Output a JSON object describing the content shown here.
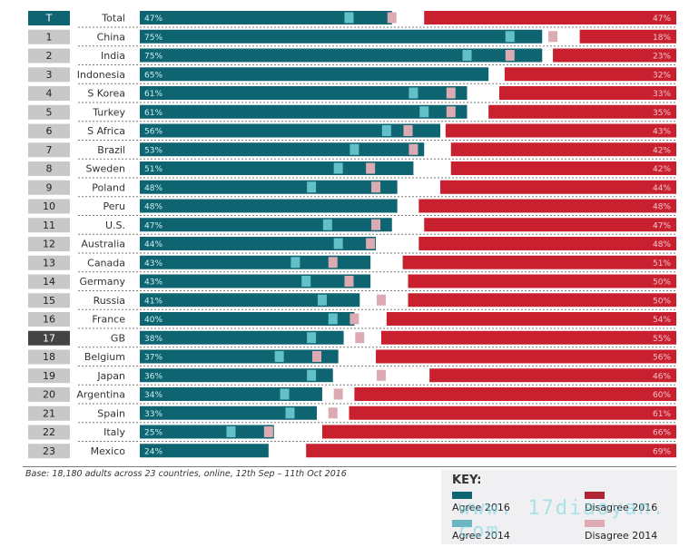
{
  "chart_data": {
    "type": "bar",
    "orientation": "horizontal-diverging",
    "title": "",
    "xlim": [
      0,
      100
    ],
    "colors": {
      "agree_2016": "#0e6470",
      "agree_2014": "#62c0c9",
      "disagree_2016": "#c8202f",
      "disagree_2014": "#dcaab2",
      "badge_total": "#0e6470",
      "badge_default": "#c8c8c8",
      "badge_highlight": "#444444"
    },
    "rows": [
      {
        "rank": "T",
        "country": "Total",
        "agree_2016": 47,
        "disagree_2016": 47,
        "agree_2014": 39,
        "disagree_2014": 53,
        "badge": "total"
      },
      {
        "rank": "1",
        "country": "China",
        "agree_2016": 75,
        "disagree_2016": 18,
        "agree_2014": 69,
        "disagree_2014": 23,
        "badge": "default"
      },
      {
        "rank": "2",
        "country": "India",
        "agree_2016": 75,
        "disagree_2016": 23,
        "agree_2014": 61,
        "disagree_2014": 31,
        "badge": "default"
      },
      {
        "rank": "3",
        "country": "Indonesia",
        "agree_2016": 65,
        "disagree_2016": 32,
        "agree_2014": null,
        "disagree_2014": null,
        "badge": "default"
      },
      {
        "rank": "4",
        "country": "S Korea",
        "agree_2016": 61,
        "disagree_2016": 33,
        "agree_2014": 51,
        "disagree_2014": 42,
        "badge": "default"
      },
      {
        "rank": "5",
        "country": "Turkey",
        "agree_2016": 61,
        "disagree_2016": 35,
        "agree_2014": 53,
        "disagree_2014": 42,
        "badge": "default"
      },
      {
        "rank": "6",
        "country": "S Africa",
        "agree_2016": 56,
        "disagree_2016": 43,
        "agree_2014": 46,
        "disagree_2014": 50,
        "badge": "default"
      },
      {
        "rank": "7",
        "country": "Brazil",
        "agree_2016": 53,
        "disagree_2016": 42,
        "agree_2014": 40,
        "disagree_2014": 49,
        "badge": "default"
      },
      {
        "rank": "8",
        "country": "Sweden",
        "agree_2016": 51,
        "disagree_2016": 42,
        "agree_2014": 37,
        "disagree_2014": 57,
        "badge": "default"
      },
      {
        "rank": "9",
        "country": "Poland",
        "agree_2016": 48,
        "disagree_2016": 44,
        "agree_2014": 32,
        "disagree_2014": 56,
        "badge": "default"
      },
      {
        "rank": "10",
        "country": "Peru",
        "agree_2016": 48,
        "disagree_2016": 48,
        "agree_2014": null,
        "disagree_2014": null,
        "badge": "default"
      },
      {
        "rank": "11",
        "country": "U.S.",
        "agree_2016": 47,
        "disagree_2016": 47,
        "agree_2014": 35,
        "disagree_2014": 56,
        "badge": "default"
      },
      {
        "rank": "12",
        "country": "Australia",
        "agree_2016": 44,
        "disagree_2016": 48,
        "agree_2014": 37,
        "disagree_2014": 57,
        "badge": "default"
      },
      {
        "rank": "13",
        "country": "Canada",
        "agree_2016": 43,
        "disagree_2016": 51,
        "agree_2014": 29,
        "disagree_2014": 64,
        "badge": "default"
      },
      {
        "rank": "14",
        "country": "Germany",
        "agree_2016": 43,
        "disagree_2016": 50,
        "agree_2014": 31,
        "disagree_2014": 61,
        "badge": "default"
      },
      {
        "rank": "15",
        "country": "Russia",
        "agree_2016": 41,
        "disagree_2016": 50,
        "agree_2014": 34,
        "disagree_2014": 55,
        "badge": "default"
      },
      {
        "rank": "16",
        "country": "France",
        "agree_2016": 40,
        "disagree_2016": 54,
        "agree_2014": 36,
        "disagree_2014": 60,
        "badge": "default"
      },
      {
        "rank": "17",
        "country": "GB",
        "agree_2016": 38,
        "disagree_2016": 55,
        "agree_2014": 32,
        "disagree_2014": 59,
        "badge": "highlight"
      },
      {
        "rank": "18",
        "country": "Belgium",
        "agree_2016": 37,
        "disagree_2016": 56,
        "agree_2014": 26,
        "disagree_2014": 67,
        "badge": "default"
      },
      {
        "rank": "19",
        "country": "Japan",
        "agree_2016": 36,
        "disagree_2016": 46,
        "agree_2014": 32,
        "disagree_2014": 55,
        "badge": "default"
      },
      {
        "rank": "20",
        "country": "Argentina",
        "agree_2016": 34,
        "disagree_2016": 60,
        "agree_2014": 27,
        "disagree_2014": 63,
        "badge": "default"
      },
      {
        "rank": "21",
        "country": "Spain",
        "agree_2016": 33,
        "disagree_2016": 61,
        "agree_2014": 28,
        "disagree_2014": 64,
        "badge": "default"
      },
      {
        "rank": "22",
        "country": "Italy",
        "agree_2016": 25,
        "disagree_2016": 66,
        "agree_2014": 17,
        "disagree_2014": 76,
        "badge": "default"
      },
      {
        "rank": "23",
        "country": "Mexico",
        "agree_2016": 24,
        "disagree_2016": 69,
        "agree_2014": null,
        "disagree_2014": null,
        "badge": "default"
      }
    ],
    "legend": {
      "title": "KEY:",
      "placement": "bottom-right",
      "items": [
        {
          "label": "Agree 2016",
          "key": "agree_2016"
        },
        {
          "label": "Disagree 2016",
          "key": "disagree_2016"
        },
        {
          "label": "Agree 2014",
          "key": "agree_2014"
        },
        {
          "label": "Disagree 2014",
          "key": "disagree_2014"
        }
      ]
    },
    "footnote": "Base: 18,180 adults across 23 countries, online, 12th Sep – 11th Oct 2016",
    "value_suffix": "%"
  },
  "watermark": "www. 17diaoyan. com"
}
